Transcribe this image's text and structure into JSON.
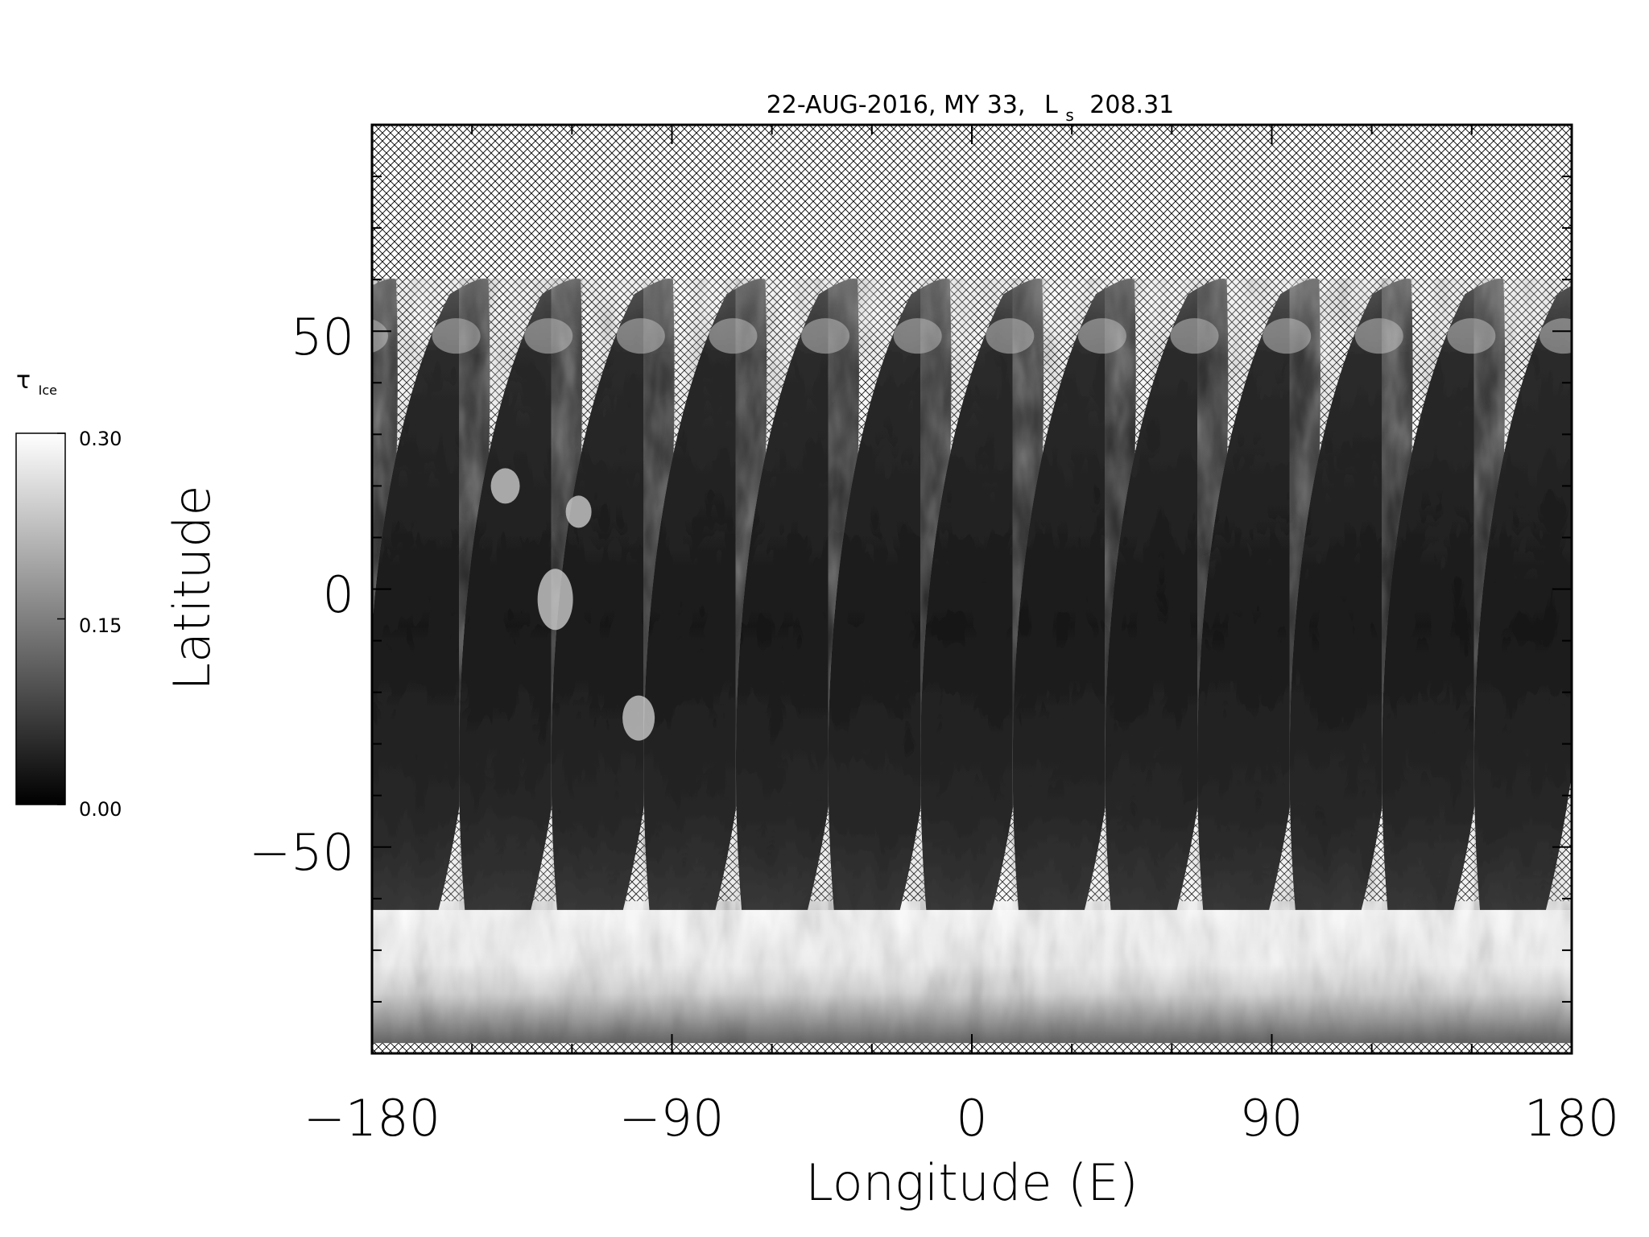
{
  "chart_data": {
    "type": "heatmap",
    "title": "22-AUG-2016, MY 33,",
    "title_ls_symbol": "L",
    "title_ls_subscript": "s",
    "title_ls_value": "208.31",
    "xlabel": "Longitude (E)",
    "ylabel": "Latitude",
    "xlim": [
      -180,
      180
    ],
    "ylim": [
      -90,
      90
    ],
    "x_major_ticks": [
      -180,
      -90,
      0,
      90,
      180
    ],
    "x_tick_labels": [
      "−180",
      "−90",
      "0",
      "90",
      "180"
    ],
    "y_major_ticks": [
      -50,
      0,
      50
    ],
    "y_tick_labels": [
      "−50",
      "0",
      "50"
    ],
    "grid": false,
    "swath_count": 13,
    "colorbar": {
      "label_symbol": "τ",
      "label_subscript": "Ice",
      "min": 0.0,
      "max": 0.3,
      "tick_values": [
        0.0,
        0.15,
        0.3
      ],
      "tick_labels": [
        "0.00",
        "0.15",
        "0.30"
      ],
      "colormap": "grayscale",
      "placement": "left"
    },
    "colors": {
      "no_data_pattern": "cross-hatch",
      "frame": "#000000",
      "low": "#000000",
      "high": "#ffffff"
    }
  }
}
